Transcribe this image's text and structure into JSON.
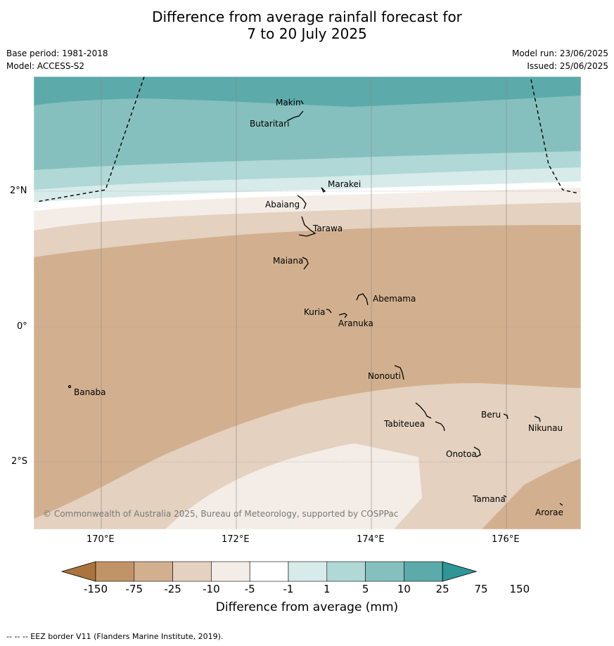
{
  "title_line1": "Difference from average rainfall forecast for",
  "title_line2": "7 to 20 July 2025",
  "base_period": "Base period: 1981-2018",
  "model": "Model: ACCESS-S2",
  "model_run": "Model run: 23/06/2025",
  "issued": "Issued: 25/06/2025",
  "latitude_labels": [
    "2°N",
    "0°",
    "2°S"
  ],
  "longitude_labels": [
    "170°E",
    "172°E",
    "174°E",
    "176°E"
  ],
  "places": [
    "Makin",
    "Butaritari",
    "Marakei",
    "Abaiang",
    "Tarawa",
    "Maiana",
    "Abemama",
    "Kuria",
    "Aranuka",
    "Nonouti",
    "Banaba",
    "Beru",
    "Tabiteuea",
    "Nikunau",
    "Onotoa",
    "Tamana",
    "Arorae"
  ],
  "copyright": "© Commonwealth of Australia 2025, Bureau of Meteorology, supported by COSPPac",
  "colorbar": {
    "title": "Difference from average (mm)",
    "ticks": [
      "-150",
      "-75",
      "-25",
      "-10",
      "-5",
      "-1",
      "1",
      "5",
      "10",
      "25",
      "75",
      "150"
    ],
    "colors": [
      "#ac743d",
      "#c19467",
      "#d2b08f",
      "#e4d1bf",
      "#f4ede7",
      "#ffffff",
      "#d7ebea",
      "#afd8d6",
      "#85c0be",
      "#5caaa9",
      "#2e9796"
    ]
  },
  "footer": "--  --  -- EEZ border V11 (Flanders Marine Institute, 2019)."
}
